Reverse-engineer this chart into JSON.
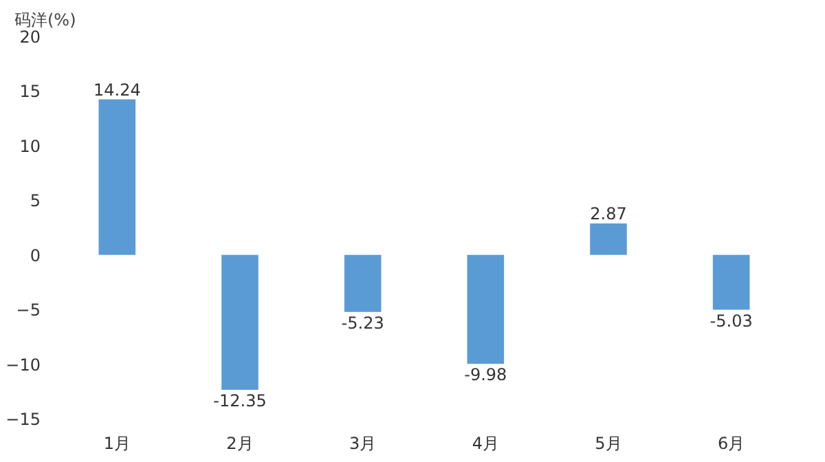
{
  "chart_data": {
    "type": "bar",
    "ylabel": "码洋(%)",
    "categories": [
      "1月",
      "2月",
      "3月",
      "4月",
      "5月",
      "6月"
    ],
    "values": [
      14.24,
      -12.35,
      -5.23,
      -9.98,
      2.87,
      -5.03
    ],
    "color": "#5b9bd5",
    "ylim": [
      -15,
      20
    ],
    "yticks": [
      -15,
      -10,
      -5,
      0,
      5,
      10,
      15,
      20
    ],
    "grid": false,
    "data_labels": true
  }
}
